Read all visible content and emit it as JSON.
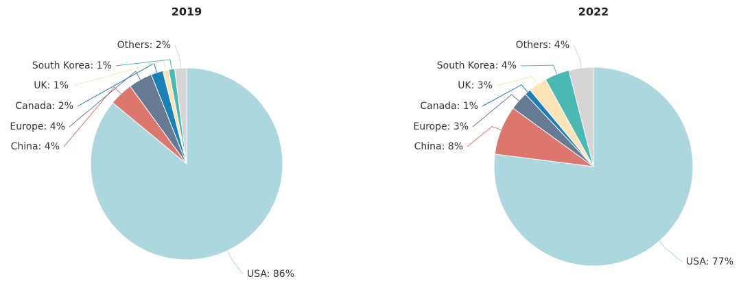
{
  "chart_data": [
    {
      "type": "pie",
      "title": "2019",
      "values": [
        86,
        4,
        4,
        2,
        1,
        1,
        2
      ],
      "value_labels": [
        "USA: 86%",
        "China: 4%",
        "Europe: 4%",
        "Canada: 2%",
        "UK: 1%",
        "South Korea: 1%",
        "Others: 2%"
      ],
      "colors": [
        "#add7df",
        "#dc776d",
        "#677a93",
        "#1b80b6",
        "#fbe5b8",
        "#4bb8b4",
        "#d5d5d5"
      ]
    },
    {
      "type": "pie",
      "title": "2022",
      "values": [
        77,
        8,
        3,
        1,
        3,
        4,
        4
      ],
      "value_labels": [
        "USA: 77%",
        "China: 8%",
        "Europe: 3%",
        "Canada: 1%",
        "UK: 3%",
        "South Korea: 4%",
        "Others: 4%"
      ],
      "colors": [
        "#add7df",
        "#dc776d",
        "#677a93",
        "#1b80b6",
        "#fbe5b8",
        "#4bb8b4",
        "#d5d5d5"
      ]
    }
  ]
}
